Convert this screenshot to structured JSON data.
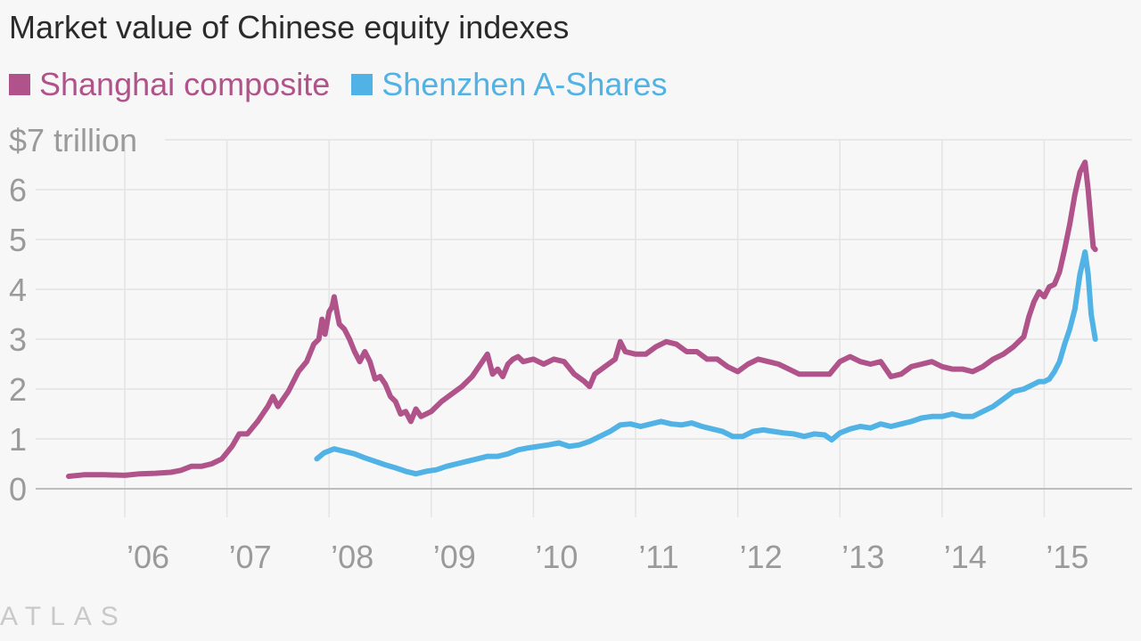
{
  "chart_data": {
    "type": "line",
    "title": "Market value of Chinese equity indexes",
    "ylabel": "",
    "xlabel": "",
    "ylim": [
      0,
      7
    ],
    "xlim": [
      2005.45,
      2015.65
    ],
    "y_ticks": [
      {
        "value": 7,
        "label": "$7 trillion"
      },
      {
        "value": 6,
        "label": "6"
      },
      {
        "value": 5,
        "label": "5"
      },
      {
        "value": 4,
        "label": "4"
      },
      {
        "value": 3,
        "label": "3"
      },
      {
        "value": 2,
        "label": "2"
      },
      {
        "value": 1,
        "label": "1"
      },
      {
        "value": 0,
        "label": "0"
      }
    ],
    "x_ticks": [
      {
        "value": 2006,
        "label": "’06"
      },
      {
        "value": 2007,
        "label": "’07"
      },
      {
        "value": 2008,
        "label": "’08"
      },
      {
        "value": 2009,
        "label": "’09"
      },
      {
        "value": 2010,
        "label": "’10"
      },
      {
        "value": 2011,
        "label": "’11"
      },
      {
        "value": 2012,
        "label": "’12"
      },
      {
        "value": 2013,
        "label": "’13"
      },
      {
        "value": 2014,
        "label": "’14"
      },
      {
        "value": 2015,
        "label": "’15"
      }
    ],
    "grid": true,
    "legend_position": "top-left",
    "series": [
      {
        "name": "Shanghai composite",
        "color": "#b0538a",
        "points": [
          [
            2005.45,
            0.25
          ],
          [
            2005.6,
            0.28
          ],
          [
            2005.8,
            0.28
          ],
          [
            2006.0,
            0.27
          ],
          [
            2006.15,
            0.3
          ],
          [
            2006.3,
            0.31
          ],
          [
            2006.45,
            0.33
          ],
          [
            2006.55,
            0.37
          ],
          [
            2006.65,
            0.45
          ],
          [
            2006.75,
            0.45
          ],
          [
            2006.85,
            0.5
          ],
          [
            2006.95,
            0.6
          ],
          [
            2007.05,
            0.85
          ],
          [
            2007.12,
            1.1
          ],
          [
            2007.2,
            1.1
          ],
          [
            2007.3,
            1.35
          ],
          [
            2007.4,
            1.65
          ],
          [
            2007.45,
            1.85
          ],
          [
            2007.5,
            1.65
          ],
          [
            2007.55,
            1.8
          ],
          [
            2007.6,
            1.95
          ],
          [
            2007.7,
            2.35
          ],
          [
            2007.78,
            2.55
          ],
          [
            2007.85,
            2.9
          ],
          [
            2007.9,
            3.0
          ],
          [
            2007.93,
            3.4
          ],
          [
            2007.96,
            3.1
          ],
          [
            2008.0,
            3.55
          ],
          [
            2008.03,
            3.65
          ],
          [
            2008.05,
            3.85
          ],
          [
            2008.08,
            3.5
          ],
          [
            2008.1,
            3.3
          ],
          [
            2008.15,
            3.2
          ],
          [
            2008.2,
            3.0
          ],
          [
            2008.25,
            2.75
          ],
          [
            2008.3,
            2.55
          ],
          [
            2008.35,
            2.75
          ],
          [
            2008.4,
            2.55
          ],
          [
            2008.45,
            2.2
          ],
          [
            2008.5,
            2.25
          ],
          [
            2008.55,
            2.1
          ],
          [
            2008.6,
            1.85
          ],
          [
            2008.65,
            1.75
          ],
          [
            2008.7,
            1.5
          ],
          [
            2008.75,
            1.55
          ],
          [
            2008.8,
            1.35
          ],
          [
            2008.85,
            1.6
          ],
          [
            2008.9,
            1.45
          ],
          [
            2008.95,
            1.5
          ],
          [
            2009.0,
            1.55
          ],
          [
            2009.1,
            1.75
          ],
          [
            2009.2,
            1.9
          ],
          [
            2009.3,
            2.05
          ],
          [
            2009.4,
            2.25
          ],
          [
            2009.5,
            2.55
          ],
          [
            2009.55,
            2.7
          ],
          [
            2009.6,
            2.3
          ],
          [
            2009.65,
            2.4
          ],
          [
            2009.7,
            2.25
          ],
          [
            2009.75,
            2.5
          ],
          [
            2009.8,
            2.6
          ],
          [
            2009.85,
            2.65
          ],
          [
            2009.9,
            2.55
          ],
          [
            2010.0,
            2.6
          ],
          [
            2010.1,
            2.5
          ],
          [
            2010.2,
            2.6
          ],
          [
            2010.3,
            2.55
          ],
          [
            2010.4,
            2.3
          ],
          [
            2010.5,
            2.15
          ],
          [
            2010.55,
            2.05
          ],
          [
            2010.6,
            2.3
          ],
          [
            2010.7,
            2.45
          ],
          [
            2010.8,
            2.6
          ],
          [
            2010.85,
            2.95
          ],
          [
            2010.9,
            2.75
          ],
          [
            2011.0,
            2.7
          ],
          [
            2011.1,
            2.7
          ],
          [
            2011.2,
            2.85
          ],
          [
            2011.3,
            2.95
          ],
          [
            2011.4,
            2.9
          ],
          [
            2011.5,
            2.75
          ],
          [
            2011.6,
            2.75
          ],
          [
            2011.7,
            2.6
          ],
          [
            2011.8,
            2.6
          ],
          [
            2011.9,
            2.45
          ],
          [
            2012.0,
            2.35
          ],
          [
            2012.1,
            2.5
          ],
          [
            2012.2,
            2.6
          ],
          [
            2012.3,
            2.55
          ],
          [
            2012.4,
            2.5
          ],
          [
            2012.5,
            2.4
          ],
          [
            2012.6,
            2.3
          ],
          [
            2012.7,
            2.3
          ],
          [
            2012.8,
            2.3
          ],
          [
            2012.9,
            2.3
          ],
          [
            2013.0,
            2.55
          ],
          [
            2013.1,
            2.65
          ],
          [
            2013.2,
            2.55
          ],
          [
            2013.3,
            2.5
          ],
          [
            2013.4,
            2.55
          ],
          [
            2013.5,
            2.25
          ],
          [
            2013.6,
            2.3
          ],
          [
            2013.7,
            2.45
          ],
          [
            2013.8,
            2.5
          ],
          [
            2013.9,
            2.55
          ],
          [
            2014.0,
            2.45
          ],
          [
            2014.1,
            2.4
          ],
          [
            2014.2,
            2.4
          ],
          [
            2014.3,
            2.35
          ],
          [
            2014.4,
            2.45
          ],
          [
            2014.5,
            2.6
          ],
          [
            2014.6,
            2.7
          ],
          [
            2014.7,
            2.85
          ],
          [
            2014.8,
            3.05
          ],
          [
            2014.85,
            3.45
          ],
          [
            2014.9,
            3.75
          ],
          [
            2014.95,
            3.95
          ],
          [
            2015.0,
            3.85
          ],
          [
            2015.05,
            4.05
          ],
          [
            2015.1,
            4.1
          ],
          [
            2015.15,
            4.35
          ],
          [
            2015.2,
            4.8
          ],
          [
            2015.25,
            5.3
          ],
          [
            2015.3,
            5.9
          ],
          [
            2015.35,
            6.35
          ],
          [
            2015.4,
            6.55
          ],
          [
            2015.43,
            6.0
          ],
          [
            2015.46,
            5.3
          ],
          [
            2015.48,
            4.85
          ],
          [
            2015.5,
            4.8
          ]
        ]
      },
      {
        "name": "Shenzhen A-Shares",
        "color": "#51b2e5",
        "points": [
          [
            2007.88,
            0.6
          ],
          [
            2007.95,
            0.72
          ],
          [
            2008.05,
            0.8
          ],
          [
            2008.15,
            0.75
          ],
          [
            2008.25,
            0.7
          ],
          [
            2008.35,
            0.62
          ],
          [
            2008.45,
            0.55
          ],
          [
            2008.55,
            0.48
          ],
          [
            2008.65,
            0.42
          ],
          [
            2008.75,
            0.35
          ],
          [
            2008.85,
            0.3
          ],
          [
            2008.95,
            0.35
          ],
          [
            2009.05,
            0.38
          ],
          [
            2009.15,
            0.45
          ],
          [
            2009.25,
            0.5
          ],
          [
            2009.35,
            0.55
          ],
          [
            2009.45,
            0.6
          ],
          [
            2009.55,
            0.65
          ],
          [
            2009.65,
            0.65
          ],
          [
            2009.75,
            0.7
          ],
          [
            2009.85,
            0.78
          ],
          [
            2009.95,
            0.82
          ],
          [
            2010.05,
            0.85
          ],
          [
            2010.15,
            0.88
          ],
          [
            2010.25,
            0.92
          ],
          [
            2010.35,
            0.85
          ],
          [
            2010.45,
            0.88
          ],
          [
            2010.55,
            0.95
          ],
          [
            2010.65,
            1.05
          ],
          [
            2010.75,
            1.15
          ],
          [
            2010.85,
            1.28
          ],
          [
            2010.95,
            1.3
          ],
          [
            2011.05,
            1.25
          ],
          [
            2011.15,
            1.3
          ],
          [
            2011.25,
            1.35
          ],
          [
            2011.35,
            1.3
          ],
          [
            2011.45,
            1.28
          ],
          [
            2011.55,
            1.32
          ],
          [
            2011.65,
            1.25
          ],
          [
            2011.75,
            1.2
          ],
          [
            2011.85,
            1.15
          ],
          [
            2011.95,
            1.05
          ],
          [
            2012.05,
            1.05
          ],
          [
            2012.15,
            1.15
          ],
          [
            2012.25,
            1.18
          ],
          [
            2012.35,
            1.15
          ],
          [
            2012.45,
            1.12
          ],
          [
            2012.55,
            1.1
          ],
          [
            2012.65,
            1.05
          ],
          [
            2012.75,
            1.1
          ],
          [
            2012.85,
            1.08
          ],
          [
            2012.92,
            0.98
          ],
          [
            2013.0,
            1.12
          ],
          [
            2013.1,
            1.2
          ],
          [
            2013.2,
            1.25
          ],
          [
            2013.3,
            1.22
          ],
          [
            2013.4,
            1.3
          ],
          [
            2013.5,
            1.25
          ],
          [
            2013.6,
            1.3
          ],
          [
            2013.7,
            1.35
          ],
          [
            2013.8,
            1.42
          ],
          [
            2013.9,
            1.45
          ],
          [
            2014.0,
            1.45
          ],
          [
            2014.1,
            1.5
          ],
          [
            2014.2,
            1.45
          ],
          [
            2014.3,
            1.45
          ],
          [
            2014.4,
            1.55
          ],
          [
            2014.5,
            1.65
          ],
          [
            2014.6,
            1.8
          ],
          [
            2014.7,
            1.95
          ],
          [
            2014.8,
            2.0
          ],
          [
            2014.9,
            2.1
          ],
          [
            2014.95,
            2.15
          ],
          [
            2015.0,
            2.15
          ],
          [
            2015.05,
            2.2
          ],
          [
            2015.1,
            2.35
          ],
          [
            2015.15,
            2.55
          ],
          [
            2015.2,
            2.9
          ],
          [
            2015.25,
            3.2
          ],
          [
            2015.3,
            3.6
          ],
          [
            2015.35,
            4.3
          ],
          [
            2015.4,
            4.75
          ],
          [
            2015.43,
            4.3
          ],
          [
            2015.46,
            3.5
          ],
          [
            2015.5,
            3.0
          ]
        ]
      }
    ]
  },
  "watermark": "ATLAS",
  "colors": {
    "background": "#f7f7f7",
    "grid": "#e4e4e4",
    "axis": "#bdbdbd",
    "tick_text": "#9a9a9a"
  }
}
